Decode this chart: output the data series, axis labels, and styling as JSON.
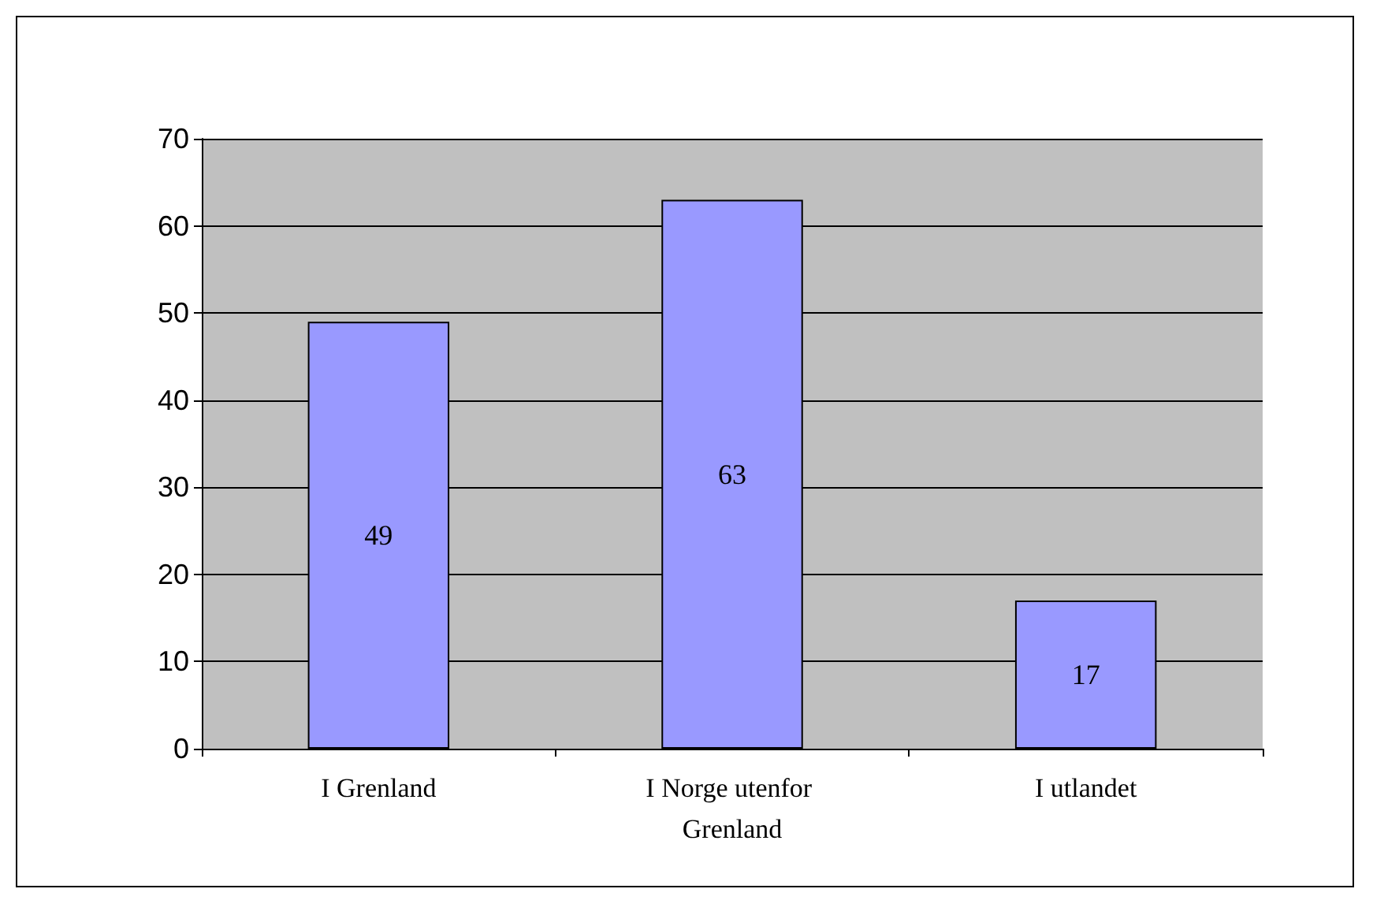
{
  "chart_data": {
    "type": "bar",
    "categories": [
      "I Grenland",
      "I Norge utenfor Grenland",
      "I utlandet"
    ],
    "values": [
      49,
      63,
      17
    ],
    "color": "#9999ff",
    "ylim": [
      0,
      70
    ],
    "yticks": [
      0,
      10,
      20,
      30,
      40,
      50,
      60,
      70
    ],
    "grid": true,
    "data_labels": true
  }
}
